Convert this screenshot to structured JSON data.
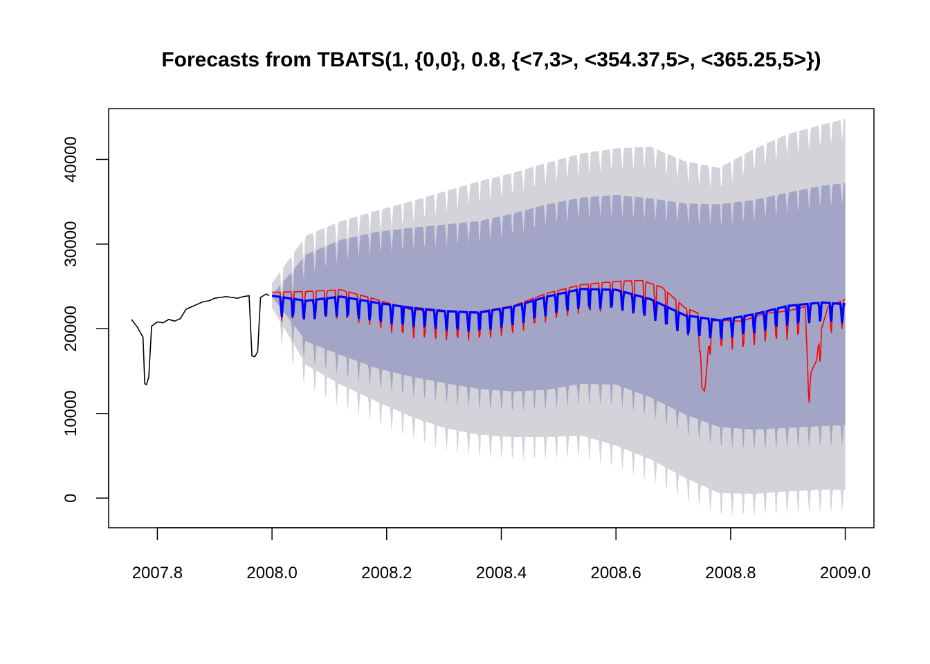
{
  "chart_data": {
    "type": "line",
    "title": "Forecasts from TBATS(1, {0,0}, 0.8, {<7,3>, <354.37,5>, <365.25,5>})",
    "xlabel": "",
    "ylabel": "",
    "xlim": [
      2007.715,
      2009.05
    ],
    "ylim": [
      -3500,
      46000
    ],
    "x_ticks": [
      2007.8,
      2008.0,
      2008.2,
      2008.4,
      2008.6,
      2008.8,
      2009.0
    ],
    "x_tick_labels": [
      "2007.8",
      "2008.0",
      "2008.2",
      "2008.4",
      "2008.6",
      "2008.8",
      "2009.0"
    ],
    "y_ticks": [
      0,
      10000,
      20000,
      30000,
      40000
    ],
    "y_tick_labels": [
      "0",
      "10000",
      "20000",
      "30000",
      "40000"
    ],
    "grid": false,
    "legend": "none",
    "weekly_cycle_days": 7,
    "colors": {
      "history": "#000000",
      "actual": "#ff0000",
      "forecast": "#0000ff",
      "band80": "#a2a5c5",
      "band95": "#d3d3d9",
      "frame": "#000000"
    },
    "series": [
      {
        "role": "history",
        "x": [
          2007.755,
          2007.765,
          2007.775,
          2007.778,
          2007.781,
          2007.785,
          2007.79,
          2007.8,
          2007.81,
          2007.82,
          2007.83,
          2007.84,
          2007.85,
          2007.86,
          2007.87,
          2007.88,
          2007.89,
          2007.9,
          2007.91,
          2007.92,
          2007.93,
          2007.94,
          2007.95,
          2007.96,
          2007.965,
          2007.97,
          2007.975,
          2007.98,
          2007.99,
          2007.995
        ],
        "values": [
          21100,
          20200,
          19000,
          13500,
          13400,
          14300,
          20300,
          20800,
          20700,
          21100,
          20900,
          21200,
          22300,
          22600,
          22900,
          23200,
          23300,
          23600,
          23700,
          23800,
          23700,
          23600,
          23800,
          23900,
          16800,
          16700,
          17300,
          23700,
          24100,
          23900
        ]
      },
      {
        "role": "actual",
        "x": [
          2008.0,
          2008.06,
          2008.12,
          2008.18,
          2008.24,
          2008.3,
          2008.36,
          2008.42,
          2008.48,
          2008.54,
          2008.6,
          2008.645,
          2008.68,
          2008.72,
          2008.745,
          2008.75,
          2008.755,
          2008.765,
          2008.78,
          2008.82,
          2008.86,
          2008.9,
          2008.93,
          2008.935,
          2008.94,
          2008.95,
          2008.955,
          2008.97,
          2009.0
        ],
        "values": [
          24300,
          24400,
          24600,
          23500,
          22300,
          22000,
          22000,
          22700,
          24200,
          25200,
          25600,
          25700,
          24900,
          22500,
          21800,
          13000,
          12600,
          20900,
          21000,
          20900,
          21800,
          22100,
          22600,
          14500,
          14800,
          16300,
          19200,
          22600,
          23500
        ]
      },
      {
        "role": "forecast",
        "x": [
          2008.0,
          2008.06,
          2008.12,
          2008.18,
          2008.24,
          2008.3,
          2008.36,
          2008.42,
          2008.48,
          2008.54,
          2008.6,
          2008.66,
          2008.72,
          2008.78,
          2008.84,
          2008.9,
          2008.96,
          2009.0
        ],
        "values": [
          23900,
          23300,
          23800,
          23100,
          22500,
          22100,
          21900,
          22600,
          23800,
          24700,
          24600,
          23500,
          21600,
          21000,
          21700,
          22700,
          23100,
          22900
        ]
      },
      {
        "role": "band80",
        "x": [
          2008.0,
          2008.06,
          2008.12,
          2008.18,
          2008.24,
          2008.3,
          2008.36,
          2008.42,
          2008.48,
          2008.54,
          2008.6,
          2008.66,
          2008.72,
          2008.78,
          2008.84,
          2008.9,
          2008.96,
          2009.0
        ],
        "upper": [
          24000,
          28800,
          30500,
          31400,
          31900,
          32300,
          32700,
          33600,
          34700,
          35500,
          35800,
          35400,
          34800,
          34700,
          35200,
          36100,
          36900,
          37200
        ],
        "lower": [
          23800,
          18500,
          16900,
          15400,
          14400,
          13600,
          12900,
          12600,
          12800,
          13500,
          13400,
          11900,
          9900,
          8400,
          8100,
          8300,
          8500,
          8600
        ]
      },
      {
        "role": "band95",
        "x": [
          2008.0,
          2008.06,
          2008.12,
          2008.18,
          2008.24,
          2008.3,
          2008.36,
          2008.42,
          2008.48,
          2008.54,
          2008.6,
          2008.66,
          2008.72,
          2008.78,
          2008.84,
          2008.9,
          2008.96,
          2009.0
        ],
        "upper": [
          25400,
          31000,
          32700,
          33900,
          35000,
          36200,
          37400,
          38400,
          39600,
          40700,
          41300,
          41500,
          39800,
          39000,
          41200,
          43000,
          44100,
          44800
        ],
        "lower": [
          22500,
          15700,
          13400,
          11500,
          9700,
          8300,
          7500,
          7200,
          7200,
          7400,
          6200,
          4600,
          2400,
          600,
          500,
          800,
          1000,
          1000
        ]
      }
    ]
  }
}
